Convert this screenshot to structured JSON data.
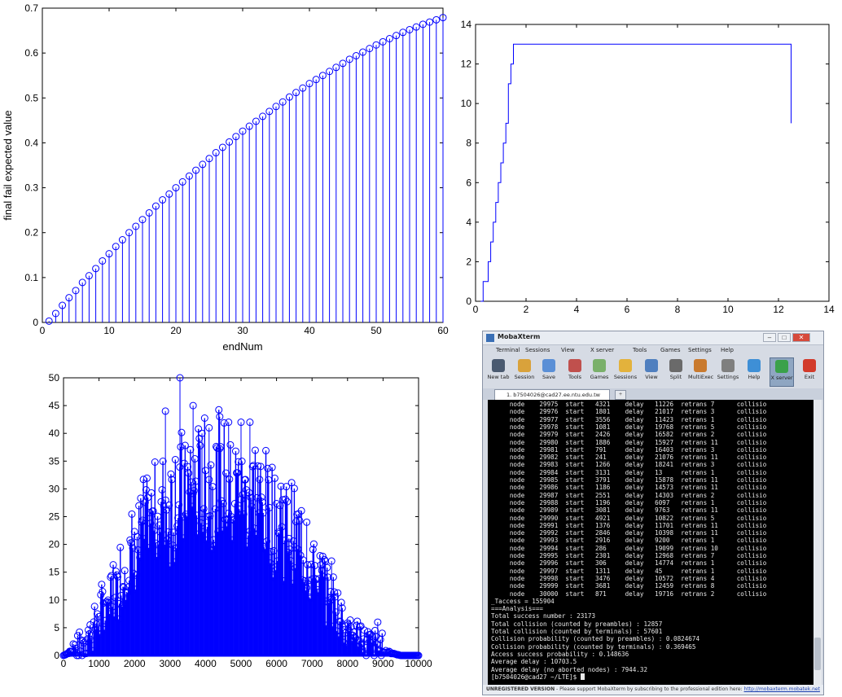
{
  "chart_data": [
    {
      "type": "stem",
      "xlabel": "endNum",
      "ylabel": "final fail expected value",
      "xlim": [
        0,
        60
      ],
      "ylim": [
        0,
        0.7
      ],
      "xticks": [
        0,
        10,
        20,
        30,
        40,
        50,
        60
      ],
      "yticks": [
        0,
        0.1,
        0.2,
        0.3,
        0.4,
        0.5,
        0.6,
        0.7
      ],
      "x": [
        1,
        2,
        3,
        4,
        5,
        6,
        7,
        8,
        9,
        10,
        11,
        12,
        13,
        14,
        15,
        16,
        17,
        18,
        19,
        20,
        21,
        22,
        23,
        24,
        25,
        26,
        27,
        28,
        29,
        30,
        31,
        32,
        33,
        34,
        35,
        36,
        37,
        38,
        39,
        40,
        41,
        42,
        43,
        44,
        45,
        46,
        47,
        48,
        49,
        50,
        51,
        52,
        53,
        54,
        55,
        56,
        57,
        58,
        59,
        60
      ],
      "y": [
        0.003,
        0.02,
        0.038,
        0.055,
        0.071,
        0.089,
        0.104,
        0.12,
        0.137,
        0.153,
        0.169,
        0.184,
        0.2,
        0.214,
        0.229,
        0.244,
        0.259,
        0.273,
        0.286,
        0.3,
        0.313,
        0.326,
        0.339,
        0.352,
        0.365,
        0.378,
        0.39,
        0.402,
        0.414,
        0.426,
        0.437,
        0.448,
        0.459,
        0.47,
        0.481,
        0.491,
        0.502,
        0.512,
        0.522,
        0.532,
        0.541,
        0.55,
        0.559,
        0.568,
        0.577,
        0.586,
        0.594,
        0.602,
        0.61,
        0.618,
        0.625,
        0.632,
        0.639,
        0.646,
        0.652,
        0.658,
        0.664,
        0.669,
        0.674,
        0.679
      ],
      "color": "#0000ff",
      "grid": false
    },
    {
      "type": "line",
      "xlim": [
        0,
        14
      ],
      "ylim": [
        0,
        14
      ],
      "xticks": [
        0,
        2,
        4,
        6,
        8,
        10,
        12,
        14
      ],
      "yticks": [
        0,
        2,
        4,
        6,
        8,
        10,
        12,
        14
      ],
      "x": [
        0.2,
        0.3,
        0.5,
        0.6,
        0.7,
        0.8,
        0.9,
        1.0,
        1.1,
        1.2,
        1.3,
        1.4,
        1.5,
        12.5
      ],
      "y": [
        0,
        1,
        2,
        3,
        4,
        5,
        6,
        7,
        8,
        9,
        11,
        12,
        13,
        9
      ],
      "step": true,
      "color": "#0000ff",
      "grid": false
    },
    {
      "type": "stem",
      "xlim": [
        0,
        10000
      ],
      "ylim": [
        0,
        50
      ],
      "xticks": [
        0,
        1000,
        2000,
        3000,
        4000,
        5000,
        6000,
        7000,
        8000,
        9000,
        10000
      ],
      "yticks": [
        0,
        5,
        10,
        15,
        20,
        25,
        30,
        35,
        40,
        45,
        50
      ],
      "envelope_x": [
        0,
        500,
        1000,
        1500,
        2000,
        2500,
        3000,
        3500,
        4000,
        4500,
        5000,
        5500,
        6000,
        6500,
        7000,
        7500,
        8000,
        8500,
        9000,
        9500,
        10000
      ],
      "envelope_y": [
        0,
        2,
        8,
        15,
        23,
        29,
        33,
        35,
        36,
        37,
        35,
        33,
        30,
        25,
        19,
        13,
        6,
        3,
        1,
        0,
        0
      ],
      "peak_points": [
        {
          "x": 3280,
          "y": 50
        },
        {
          "x": 2870,
          "y": 44
        },
        {
          "x": 3650,
          "y": 45
        },
        {
          "x": 4400,
          "y": 43
        },
        {
          "x": 5000,
          "y": 42
        },
        {
          "x": 5250,
          "y": 42
        },
        {
          "x": 4650,
          "y": 42
        },
        {
          "x": 4100,
          "y": 41
        },
        {
          "x": 3900,
          "y": 40
        },
        {
          "x": 6850,
          "y": 24
        },
        {
          "x": 7550,
          "y": 17
        },
        {
          "x": 8850,
          "y": 6
        }
      ],
      "color": "#0000ff",
      "grid": false
    }
  ],
  "window": {
    "title": "MobaXterm",
    "menu": [
      "Terminal",
      "Sessions",
      "View",
      "X server",
      "Tools",
      "Games",
      "Settings",
      "Help"
    ],
    "toolbar": [
      "New tab",
      "Session",
      "Save",
      "Tools",
      "Games",
      "Sessions",
      "View",
      "Split",
      "MultiExec",
      "Settings",
      "Help",
      "X server",
      "Exit"
    ],
    "tab": "1. b7504026@cad27.ee.ntu.edu.tw",
    "status_label": "UNREGISTERED VERSION",
    "status_text": "- Please support MobaXterm by subscribing to the professional edition here:",
    "status_link": "http://mobaxterm.mobatek.net"
  },
  "terminal": {
    "lines": [
      "     node    29975  start   4321    delay   11226  retrans 7      collisio",
      "     node    29976  start   1801    delay   21017  retrans 3      collisio",
      "     node    29977  start   3556    delay   11423  retrans 1      collisio",
      "     node    29978  start   1081    delay   19768  retrans 5      collisio",
      "     node    29979  start   2426    delay   16582  retrans 2      collisio",
      "     node    29980  start   1886    delay   15927  retrans 11     collisio",
      "     node    29981  start   791     delay   16403  retrans 3      collisio",
      "     node    29982  start   241     delay   21076  retrans 11     collisio",
      "     node    29983  start   1266    delay   18241  retrans 3      collisio",
      "     node    29984  start   3131    delay   13     retrans 1      collisio",
      "     node    29985  start   3791    delay   15878  retrans 11     collisio",
      "     node    29986  start   1186    delay   14573  retrans 11     collisio",
      "     node    29987  start   2551    delay   14303  retrans 2      collisio",
      "     node    29988  start   1196    delay   6097   retrans 1      collisio",
      "     node    29989  start   3081    delay   9763   retrans 11     collisio",
      "     node    29990  start   4921    delay   10822  retrans 5      collisio",
      "     node    29991  start   1376    delay   11701  retrans 11     collisio",
      "     node    29992  start   2846    delay   10398  retrans 11     collisio",
      "     node    29993  start   2916    delay   9200   retrans 1      collisio",
      "     node    29994  start   286     delay   19099  retrans 10     collisio",
      "     node    29995  start   2301    delay   12968  retrans 7      collisio",
      "     node    29996  start   306     delay   14774  retrans 1      collisio",
      "     node    29997  start   1311    delay   45     retrans 1      collisio",
      "     node    29998  start   3476    delay   10572  retrans 4      collisio",
      "     node    29999  start   3681    delay   12459  retrans 8      collisio",
      "     node    30000  start   871     delay   19716  retrans 2      collisio",
      "_Taccess = 155904",
      "===Analysis===",
      "Total success number : 23173",
      "Total collision (counted by preambles) : 12857",
      "Total collision (counted by terminals) : 57601",
      "Collision probability (counted by preambles) : 0.0824674",
      "Collision probability (counted by terminals) : 0.369465",
      "Access success probability : 0.148636",
      "Average delay : 10703.5",
      "Average delay (no aborted nodes) : 7944.32"
    ],
    "prompt": "[b7504026@cad27 ~/LTE]$ "
  }
}
